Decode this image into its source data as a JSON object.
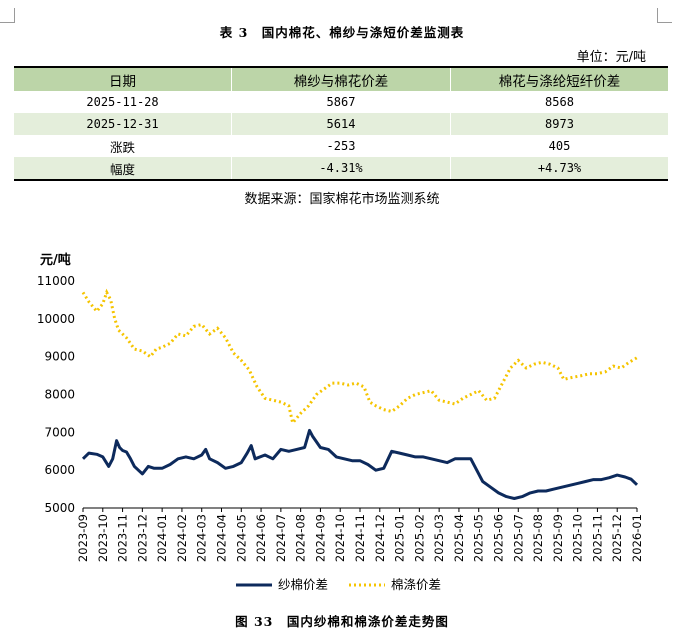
{
  "table": {
    "title": "表 3　国内棉花、棉纱与涤短价差监测表",
    "unit": "单位：元/吨",
    "headers": [
      "日期",
      "棉纱与棉花价差",
      "棉花与涤纶短纤价差"
    ],
    "rows": [
      {
        "date": "2025-11-28",
        "yarn_cotton": "5867",
        "cotton_polyester": "8568"
      },
      {
        "date": "2025-12-31",
        "yarn_cotton": "5614",
        "cotton_polyester": "8973"
      },
      {
        "date": "涨跌",
        "yarn_cotton": "-253",
        "cotton_polyester": "405"
      },
      {
        "date": "幅度",
        "yarn_cotton": "-4.31%",
        "cotton_polyester": "+4.73%"
      }
    ],
    "source": "数据来源：国家棉花市场监测系统"
  },
  "colors": {
    "yarn_series": "#0d2a5c",
    "polyester_series": "#f5c400",
    "header_bg": "#bcd5a8",
    "shade_bg": "#e4eedb"
  },
  "chart_data": {
    "type": "line",
    "title": "图 33　国内纱棉和棉涤价差走势图",
    "ylabel": "元/吨",
    "xlabel": "",
    "ylim": [
      5000,
      11000
    ],
    "yticks": [
      "5000",
      "6000",
      "7000",
      "8000",
      "9000",
      "10000",
      "11000"
    ],
    "x_ticks": [
      "2023-09",
      "2023-10",
      "2023-11",
      "2023-12",
      "2024-01",
      "2024-02",
      "2024-03",
      "2024-04",
      "2024-05",
      "2024-06",
      "2024-07",
      "2024-08",
      "2024-09",
      "2024-10",
      "2024-11",
      "2024-12",
      "2025-01",
      "2025-02",
      "2025-03",
      "2025-04",
      "2025-05",
      "2025-06",
      "2025-07",
      "2025-08",
      "2025-09",
      "2025-10",
      "2025-11",
      "2025-12",
      "2026-01"
    ],
    "x_range": [
      0,
      28
    ],
    "grid": false,
    "legend": "bottom",
    "series": [
      {
        "name": "纱棉价差",
        "style": "solid",
        "points": [
          [
            0,
            6300
          ],
          [
            0.3,
            6450
          ],
          [
            0.7,
            6420
          ],
          [
            1.0,
            6350
          ],
          [
            1.3,
            6100
          ],
          [
            1.5,
            6300
          ],
          [
            1.7,
            6780
          ],
          [
            1.85,
            6600
          ],
          [
            2.0,
            6520
          ],
          [
            2.2,
            6480
          ],
          [
            2.4,
            6300
          ],
          [
            2.6,
            6100
          ],
          [
            2.8,
            6000
          ],
          [
            3.0,
            5900
          ],
          [
            3.3,
            6100
          ],
          [
            3.6,
            6050
          ],
          [
            4.0,
            6050
          ],
          [
            4.4,
            6150
          ],
          [
            4.8,
            6300
          ],
          [
            5.2,
            6350
          ],
          [
            5.6,
            6300
          ],
          [
            6.0,
            6400
          ],
          [
            6.2,
            6550
          ],
          [
            6.4,
            6300
          ],
          [
            6.8,
            6200
          ],
          [
            7.2,
            6050
          ],
          [
            7.6,
            6100
          ],
          [
            8.0,
            6200
          ],
          [
            8.3,
            6450
          ],
          [
            8.5,
            6650
          ],
          [
            8.7,
            6300
          ],
          [
            9.2,
            6400
          ],
          [
            9.6,
            6300
          ],
          [
            10.0,
            6550
          ],
          [
            10.4,
            6500
          ],
          [
            10.8,
            6550
          ],
          [
            11.2,
            6600
          ],
          [
            11.45,
            7050
          ],
          [
            11.6,
            6900
          ],
          [
            12.0,
            6600
          ],
          [
            12.4,
            6550
          ],
          [
            12.8,
            6350
          ],
          [
            13.2,
            6300
          ],
          [
            13.6,
            6250
          ],
          [
            14.0,
            6250
          ],
          [
            14.4,
            6150
          ],
          [
            14.8,
            6000
          ],
          [
            15.2,
            6050
          ],
          [
            15.6,
            6500
          ],
          [
            16.0,
            6450
          ],
          [
            16.4,
            6400
          ],
          [
            16.8,
            6350
          ],
          [
            17.2,
            6350
          ],
          [
            17.6,
            6300
          ],
          [
            18.0,
            6250
          ],
          [
            18.4,
            6200
          ],
          [
            18.8,
            6300
          ],
          [
            19.2,
            6300
          ],
          [
            19.6,
            6300
          ],
          [
            19.8,
            6100
          ],
          [
            20.2,
            5700
          ],
          [
            20.6,
            5550
          ],
          [
            21.0,
            5400
          ],
          [
            21.4,
            5300
          ],
          [
            21.8,
            5250
          ],
          [
            22.2,
            5300
          ],
          [
            22.6,
            5400
          ],
          [
            23.0,
            5450
          ],
          [
            23.4,
            5450
          ],
          [
            23.8,
            5500
          ],
          [
            24.2,
            5550
          ],
          [
            24.6,
            5600
          ],
          [
            25.0,
            5650
          ],
          [
            25.4,
            5700
          ],
          [
            25.8,
            5750
          ],
          [
            26.2,
            5750
          ],
          [
            26.6,
            5800
          ],
          [
            27.0,
            5870
          ],
          [
            27.4,
            5820
          ],
          [
            27.7,
            5760
          ],
          [
            28.0,
            5614
          ]
        ]
      },
      {
        "name": "棉涤价差",
        "style": "dotted",
        "points": [
          [
            0,
            10700
          ],
          [
            0.3,
            10450
          ],
          [
            0.7,
            10200
          ],
          [
            1.0,
            10400
          ],
          [
            1.2,
            10700
          ],
          [
            1.4,
            10500
          ],
          [
            1.6,
            10000
          ],
          [
            1.8,
            9700
          ],
          [
            2.2,
            9500
          ],
          [
            2.6,
            9200
          ],
          [
            3.0,
            9150
          ],
          [
            3.4,
            9000
          ],
          [
            3.7,
            9200
          ],
          [
            4.0,
            9250
          ],
          [
            4.4,
            9350
          ],
          [
            4.8,
            9600
          ],
          [
            5.2,
            9550
          ],
          [
            5.6,
            9800
          ],
          [
            6.0,
            9850
          ],
          [
            6.4,
            9600
          ],
          [
            6.8,
            9750
          ],
          [
            7.2,
            9500
          ],
          [
            7.6,
            9100
          ],
          [
            8.0,
            8900
          ],
          [
            8.4,
            8650
          ],
          [
            8.8,
            8200
          ],
          [
            9.2,
            7900
          ],
          [
            9.6,
            7850
          ],
          [
            10.0,
            7800
          ],
          [
            10.4,
            7700
          ],
          [
            10.6,
            7250
          ],
          [
            11.0,
            7500
          ],
          [
            11.4,
            7700
          ],
          [
            11.8,
            8000
          ],
          [
            12.2,
            8150
          ],
          [
            12.6,
            8300
          ],
          [
            13.0,
            8300
          ],
          [
            13.4,
            8250
          ],
          [
            13.8,
            8300
          ],
          [
            14.2,
            8200
          ],
          [
            14.5,
            7800
          ],
          [
            14.8,
            7700
          ],
          [
            15.2,
            7600
          ],
          [
            15.6,
            7550
          ],
          [
            16.0,
            7700
          ],
          [
            16.4,
            7900
          ],
          [
            16.8,
            8000
          ],
          [
            17.2,
            8050
          ],
          [
            17.6,
            8100
          ],
          [
            18.0,
            7850
          ],
          [
            18.4,
            7800
          ],
          [
            18.8,
            7750
          ],
          [
            19.2,
            7900
          ],
          [
            19.6,
            8000
          ],
          [
            20.0,
            8100
          ],
          [
            20.4,
            7850
          ],
          [
            20.8,
            7900
          ],
          [
            21.2,
            8300
          ],
          [
            21.6,
            8700
          ],
          [
            22.0,
            8900
          ],
          [
            22.4,
            8700
          ],
          [
            22.8,
            8800
          ],
          [
            23.2,
            8850
          ],
          [
            23.6,
            8800
          ],
          [
            24.0,
            8700
          ],
          [
            24.3,
            8400
          ],
          [
            24.7,
            8450
          ],
          [
            25.2,
            8500
          ],
          [
            25.6,
            8550
          ],
          [
            26.0,
            8550
          ],
          [
            26.4,
            8600
          ],
          [
            26.8,
            8750
          ],
          [
            27.2,
            8700
          ],
          [
            27.6,
            8850
          ],
          [
            28.0,
            8973
          ]
        ]
      }
    ]
  }
}
